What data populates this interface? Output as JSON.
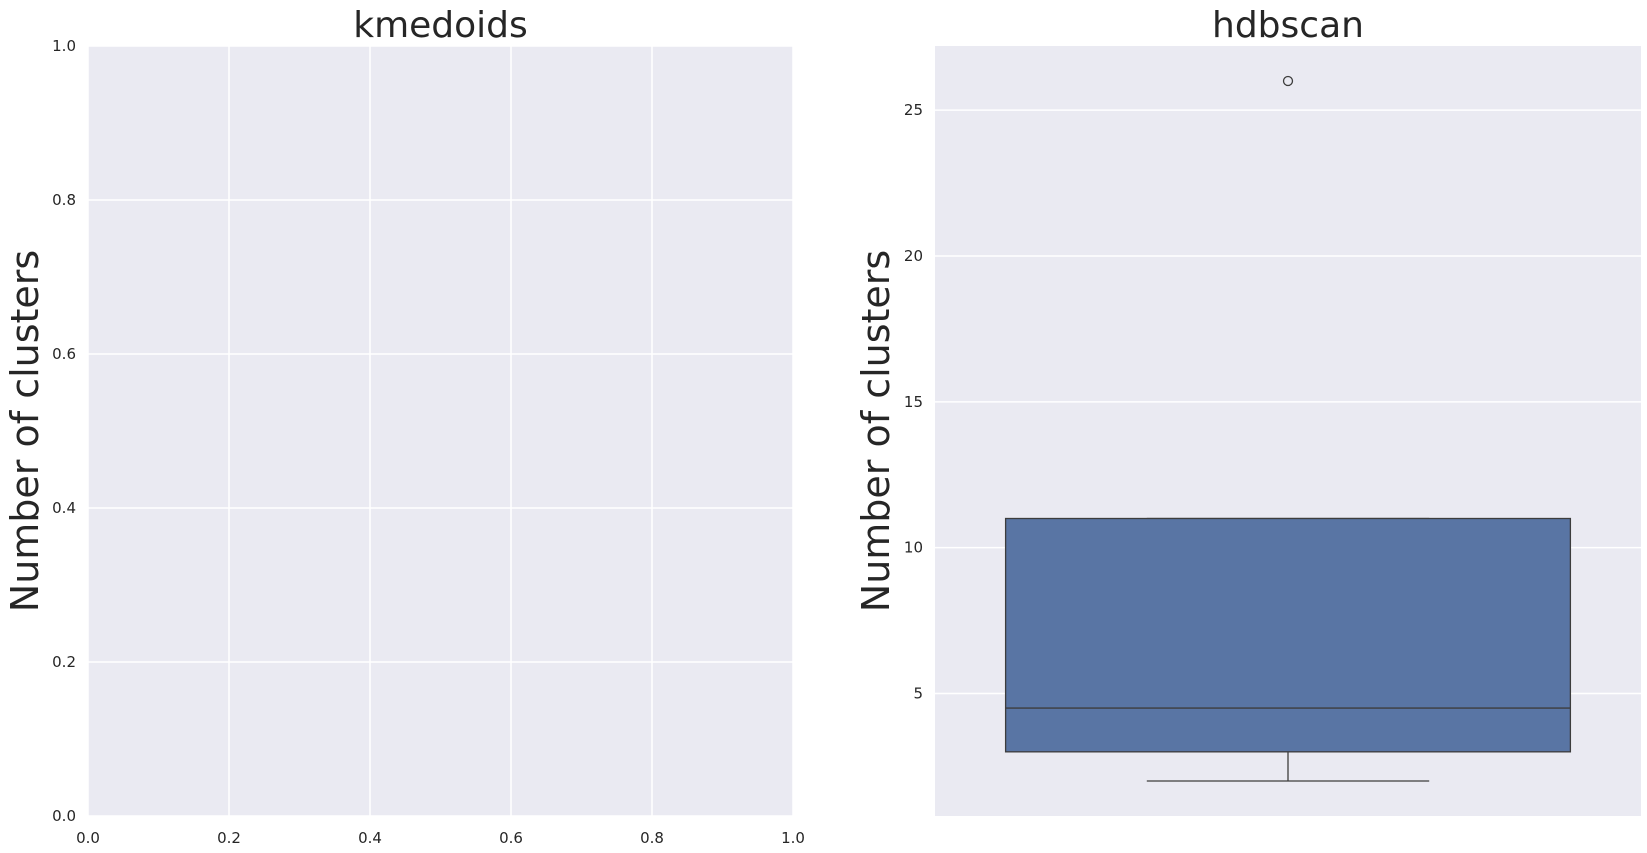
{
  "chart_data": [
    {
      "type": "box",
      "title": "kmedoids",
      "xlabel": "",
      "ylabel": "Number of clusters",
      "xlim": [
        0.0,
        1.0
      ],
      "ylim": [
        0.0,
        1.0
      ],
      "x_ticks": [
        "0.0",
        "0.2",
        "0.4",
        "0.6",
        "0.8",
        "1.0"
      ],
      "y_ticks": [
        "0.0",
        "0.2",
        "0.4",
        "0.6",
        "0.8",
        "1.0"
      ],
      "grid": true,
      "boxes": []
    },
    {
      "type": "box",
      "title": "hdbscan",
      "xlabel": "",
      "ylabel": "Number of clusters",
      "ylim": [
        0.8,
        27.2
      ],
      "y_ticks": [
        "5",
        "10",
        "15",
        "20",
        "25"
      ],
      "grid": true,
      "boxes": [
        {
          "whislo": 2,
          "q1": 3,
          "med": 4.5,
          "q3": 11,
          "whishi": 11,
          "fliers": [
            26
          ]
        }
      ],
      "colors": {
        "box": "#5975a4",
        "line": "#3d3d3d"
      }
    }
  ]
}
